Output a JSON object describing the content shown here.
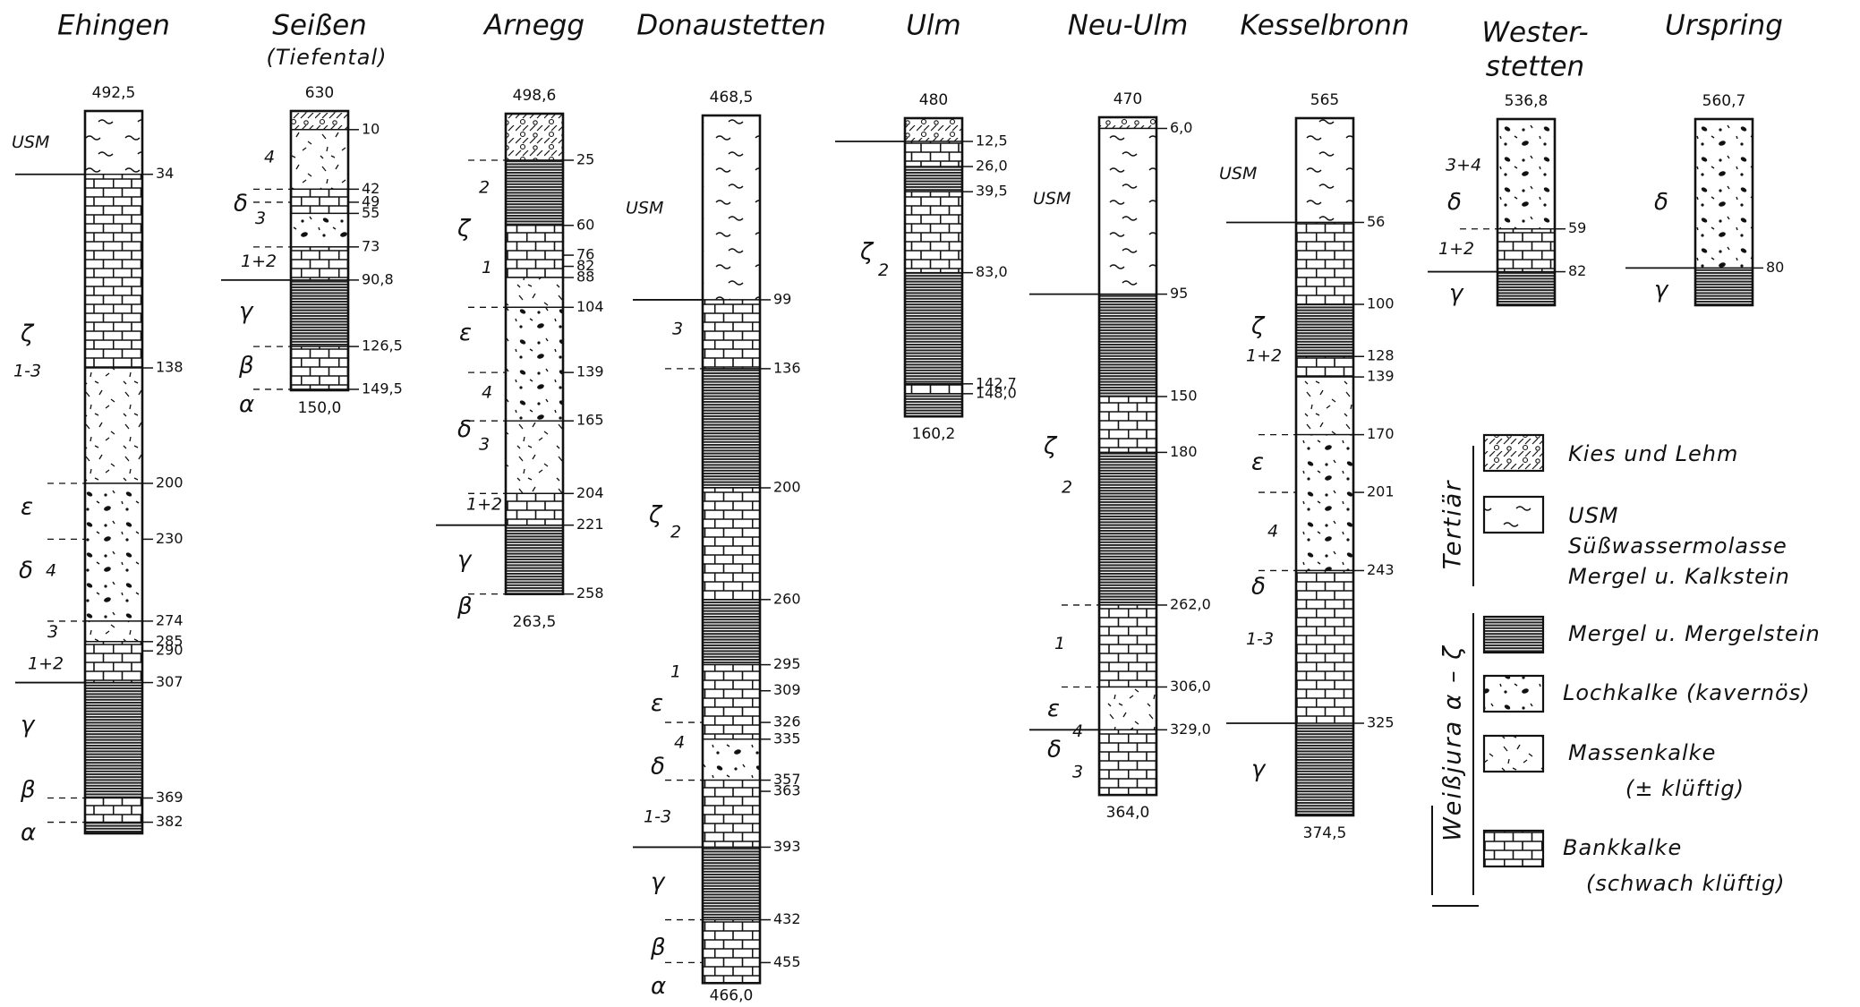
{
  "columns": [
    {
      "name": "Ehingen",
      "elevation": "492,5",
      "depths": [
        "34",
        "138",
        "200",
        "230",
        "274",
        "285",
        "290",
        "307",
        "369",
        "382"
      ],
      "units": [
        "USM",
        "ζ",
        "1-3",
        "ε",
        "δ",
        "4",
        "3",
        "1+2",
        "γ",
        "β",
        "α"
      ]
    },
    {
      "name": "Seißen",
      "subtitle": "(Tiefental)",
      "elevation": "630",
      "depths": [
        "10",
        "42",
        "49",
        "55",
        "73",
        "90,8",
        "126,5",
        "149,5"
      ],
      "bottom": "150,0",
      "units": [
        "4",
        "δ",
        "3",
        "1+2",
        "γ",
        "β",
        "α"
      ]
    },
    {
      "name": "Arnegg",
      "elevation": "498,6",
      "depths": [
        "25",
        "60",
        "76",
        "82",
        "88",
        "104",
        "139",
        "165",
        "204",
        "221",
        "258"
      ],
      "bottom": "263,5",
      "units": [
        "2",
        "ζ",
        "1",
        "ε",
        "4",
        "δ",
        "3",
        "1+2",
        "γ",
        "β"
      ]
    },
    {
      "name": "Donaustetten",
      "elevation": "468,5",
      "depths": [
        "99",
        "136",
        "200",
        "260",
        "295",
        "309",
        "326",
        "335",
        "357",
        "363",
        "393",
        "432",
        "455"
      ],
      "bottom": "466,0",
      "units": [
        "USM",
        "3",
        "ζ",
        "2",
        "1",
        "ε",
        "4",
        "δ",
        "1-3",
        "γ",
        "β",
        "α"
      ]
    },
    {
      "name": "Ulm",
      "elevation": "480",
      "depths": [
        "12,5",
        "26,0",
        "39,5",
        "83,0",
        "142,7",
        "148,0"
      ],
      "bottom": "160,2",
      "units": [
        "ζ",
        "2"
      ]
    },
    {
      "name": "Neu-Ulm",
      "elevation": "470",
      "depths": [
        "6,0",
        "95",
        "150",
        "180",
        "262,0",
        "306,0",
        "329,0"
      ],
      "bottom": "364,0",
      "units": [
        "USM",
        "ζ",
        "2",
        "1",
        "ε",
        "4",
        "δ",
        "3"
      ]
    },
    {
      "name": "Kesselbronn",
      "elevation": "565",
      "depths": [
        "56",
        "100",
        "128",
        "139",
        "170",
        "201",
        "243",
        "325"
      ],
      "bottom": "374,5",
      "units": [
        "USM",
        "ζ",
        "1+2",
        "ε",
        "4",
        "δ",
        "1-3",
        "γ"
      ]
    },
    {
      "name": [
        "Wester-",
        "stetten"
      ],
      "elevation": "536,8",
      "depths": [
        "59",
        "82"
      ],
      "units": [
        "3+4",
        "δ",
        "1+2",
        "γ"
      ]
    },
    {
      "name": "Urspring",
      "elevation": "560,7",
      "depths": [
        "80"
      ],
      "units": [
        "δ",
        "γ"
      ]
    }
  ],
  "legend": {
    "group_outer": "Weißjura α – ζ",
    "group_inner": "Tertiär",
    "items": [
      [
        "Kies und Lehm"
      ],
      [
        "USM",
        "Süßwassermolasse",
        "Mergel u. Kalkstein"
      ],
      [
        "Mergel u. Mergelstein"
      ],
      [
        "Lochkalke (kavernös)"
      ],
      [
        "Massenkalke",
        "(± klüftig)"
      ],
      [
        "Bankkalke",
        "(schwach klüftig)"
      ]
    ]
  }
}
